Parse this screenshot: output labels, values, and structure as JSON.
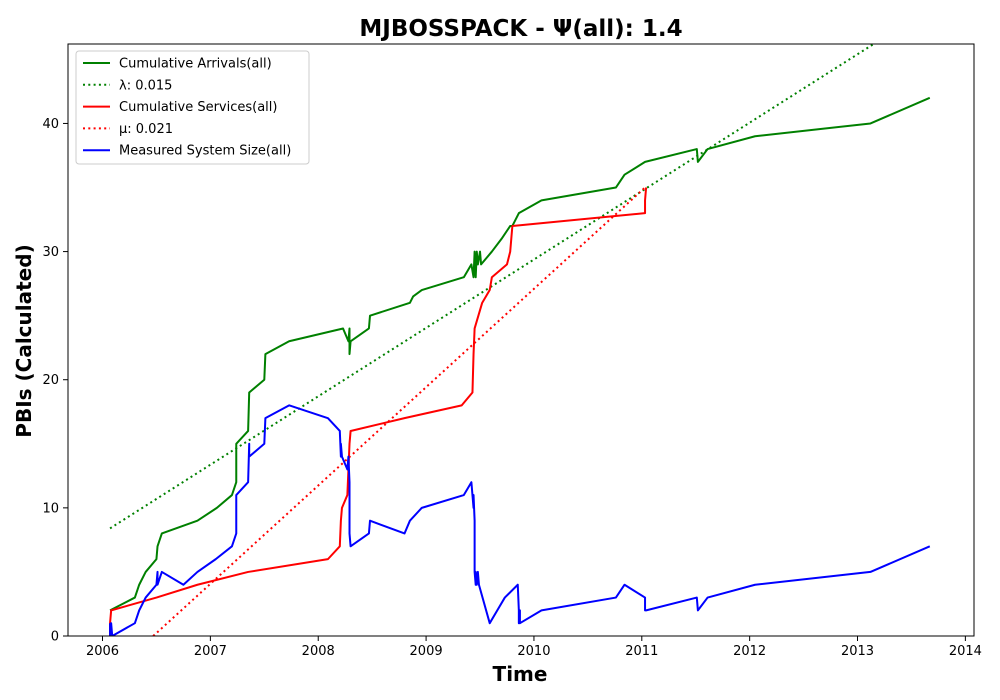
{
  "chart_data": {
    "type": "line",
    "title": "MJBOSSPACK -  Ψ(all): 1.4",
    "xlabel": "Time",
    "ylabel": "PBIs (Calculated)",
    "xlim": [
      2005.68,
      2014.08
    ],
    "ylim": [
      0,
      46.2
    ],
    "x_ticks": [
      2006,
      2007,
      2008,
      2009,
      2010,
      2011,
      2012,
      2013,
      2014
    ],
    "y_ticks": [
      0,
      10,
      20,
      30,
      40
    ],
    "grid": false,
    "legend_position": "top-left",
    "series": [
      {
        "name": "Cumulative Arrivals(all)",
        "color": "#008000",
        "style": "solid",
        "x": [
          2006.07,
          2006.3,
          2006.34,
          2006.4,
          2006.5,
          2006.51,
          2006.55,
          2006.88,
          2007.06,
          2007.2,
          2007.24,
          2007.24,
          2007.35,
          2007.36,
          2007.5,
          2007.51,
          2007.73,
          2008.23,
          2008.28,
          2008.29,
          2008.29,
          2008.3,
          2008.47,
          2008.48,
          2008.85,
          2008.88,
          2008.96,
          2009.35,
          2009.42,
          2009.44,
          2009.45,
          2009.46,
          2009.47,
          2009.48,
          2009.5,
          2009.51,
          2009.61,
          2009.7,
          2009.78,
          2009.79,
          2009.8,
          2009.86,
          2010.07,
          2010.76,
          2010.84,
          2011.03,
          2011.51,
          2011.52,
          2011.61,
          2012.05,
          2013.12,
          2013.67
        ],
        "y": [
          2,
          3,
          4,
          5,
          6,
          7,
          8,
          9,
          10,
          11,
          12,
          15,
          16,
          19,
          20,
          22,
          23,
          24,
          23,
          24,
          22,
          23,
          24,
          25,
          26,
          26.5,
          27,
          28,
          29,
          28,
          30,
          28,
          30,
          29,
          30,
          29,
          30,
          31,
          32,
          32,
          32,
          33,
          34,
          35,
          36,
          37,
          38,
          37,
          38,
          39,
          40,
          42
        ]
      },
      {
        "name": "λ: 0.015",
        "color": "#008000",
        "style": "dotted",
        "x": [
          2006.07,
          2013.15
        ],
        "y": [
          8.4,
          46.2
        ]
      },
      {
        "name": "Cumulative Services(all)",
        "color": "#ff0000",
        "style": "solid",
        "x": [
          2006.07,
          2006.07,
          2006.08,
          2006.5,
          2006.88,
          2007.35,
          2008.09,
          2008.2,
          2008.21,
          2008.22,
          2008.27,
          2008.29,
          2008.3,
          2008.8,
          2009.33,
          2009.43,
          2009.44,
          2009.45,
          2009.52,
          2009.59,
          2009.61,
          2009.75,
          2009.78,
          2009.79,
          2009.8,
          2011.03,
          2011.03,
          2011.04
        ],
        "y": [
          0,
          1,
          2,
          3,
          4,
          5,
          6,
          7,
          9,
          10,
          11,
          15,
          16,
          17,
          18,
          19,
          22,
          24,
          26,
          27,
          28,
          29,
          30,
          31,
          32,
          33,
          34,
          35
        ]
      },
      {
        "name": "μ: 0.021",
        "color": "#ff0000",
        "style": "dotted",
        "x": [
          2006.47,
          2011.03
        ],
        "y": [
          0,
          35
        ]
      },
      {
        "name": "Measured System Size(all)",
        "color": "#0000ff",
        "style": "solid",
        "x": [
          2006.07,
          2006.07,
          2006.08,
          2006.09,
          2006.3,
          2006.34,
          2006.4,
          2006.5,
          2006.51,
          2006.51,
          2006.55,
          2006.75,
          2006.88,
          2007.05,
          2007.2,
          2007.24,
          2007.24,
          2007.35,
          2007.36,
          2007.36,
          2007.5,
          2007.51,
          2007.73,
          2008.09,
          2008.2,
          2008.21,
          2008.21,
          2008.22,
          2008.27,
          2008.28,
          2008.29,
          2008.29,
          2008.3,
          2008.47,
          2008.48,
          2008.8,
          2008.85,
          2008.96,
          2009.35,
          2009.42,
          2009.43,
          2009.44,
          2009.44,
          2009.45,
          2009.45,
          2009.46,
          2009.46,
          2009.47,
          2009.48,
          2009.49,
          2009.59,
          2009.66,
          2009.73,
          2009.85,
          2009.86,
          2009.86,
          2009.87,
          2009.87,
          2010.07,
          2010.76,
          2010.84,
          2011.03,
          2011.03,
          2011.04,
          2011.51,
          2011.52,
          2011.61,
          2012.05,
          2013.12,
          2013.67
        ],
        "y": [
          1,
          0,
          1,
          0,
          1,
          2,
          3,
          4,
          5,
          4,
          5,
          4,
          5,
          6,
          7,
          8,
          11,
          12,
          15,
          14,
          15,
          17,
          18,
          17,
          16,
          14,
          15,
          14,
          13,
          14,
          12,
          8,
          7,
          8,
          9,
          8,
          9,
          10,
          11,
          12,
          11,
          10,
          11,
          9,
          5,
          4,
          5,
          4,
          5,
          4,
          1,
          2,
          3,
          4,
          2,
          1,
          2,
          1,
          2,
          3,
          4,
          3,
          2,
          2,
          3,
          2,
          3,
          4,
          5,
          7
        ]
      }
    ]
  }
}
